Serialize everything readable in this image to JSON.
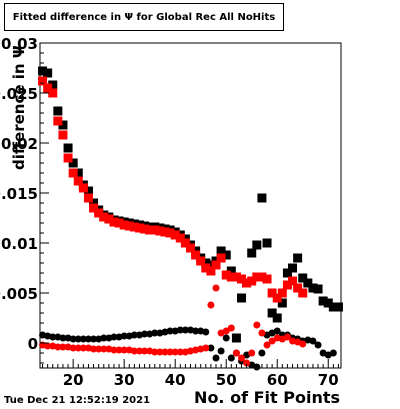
{
  "title": "Fitted difference in  Ψ  for Global Rec All NoHits",
  "timestamp": "Tue Dec 21 12:52:19 2021",
  "chart_data": {
    "type": "scatter",
    "title": "Fitted difference in  Ψ  for Global Rec All NoHits",
    "xlabel": "No. of Fit Points",
    "ylabel": "difference in  Ψ",
    "xlim": [
      13.5,
      72.5
    ],
    "ylim": [
      -0.0025,
      0.03
    ],
    "x_ticks": [
      "20",
      "30",
      "40",
      "50",
      "60",
      "70"
    ],
    "y_ticks": [
      "0",
      "0.005",
      "0.01",
      "0.015",
      "0.02",
      "0.025",
      "0.03"
    ],
    "grid": false,
    "colors": {
      "black": "#000000",
      "red": "#ff0000"
    },
    "series": [
      {
        "color": "black",
        "marker": "square",
        "points": [
          [
            14,
            0.0272
          ],
          [
            15,
            0.027
          ],
          [
            16,
            0.0258
          ],
          [
            17,
            0.0232
          ],
          [
            18,
            0.0218
          ],
          [
            19,
            0.0195
          ],
          [
            20,
            0.018
          ],
          [
            21,
            0.017
          ],
          [
            22,
            0.0158
          ],
          [
            23,
            0.0152
          ],
          [
            24,
            0.014
          ],
          [
            25,
            0.0133
          ],
          [
            26,
            0.0128
          ],
          [
            27,
            0.0126
          ],
          [
            28,
            0.0123
          ],
          [
            29,
            0.0122
          ],
          [
            30,
            0.0121
          ],
          [
            31,
            0.012
          ],
          [
            32,
            0.0119
          ],
          [
            33,
            0.0118
          ],
          [
            34,
            0.0117
          ],
          [
            35,
            0.0116
          ],
          [
            36,
            0.0116
          ],
          [
            37,
            0.0115
          ],
          [
            38,
            0.0114
          ],
          [
            39,
            0.0113
          ],
          [
            40,
            0.0111
          ],
          [
            41,
            0.0108
          ],
          [
            42,
            0.0104
          ],
          [
            43,
            0.0098
          ],
          [
            44,
            0.0092
          ],
          [
            45,
            0.0085
          ],
          [
            46,
            0.008
          ],
          [
            47,
            0.0078
          ],
          [
            48,
            0.0082
          ],
          [
            49,
            0.0092
          ],
          [
            50,
            0.0088
          ],
          [
            51,
            0.0072
          ],
          [
            52,
            0.0005
          ],
          [
            53,
            0.0045
          ],
          [
            54,
            0.006
          ],
          [
            55,
            0.009
          ],
          [
            56,
            0.0098
          ],
          [
            57,
            0.0145
          ],
          [
            58,
            0.01
          ],
          [
            59,
            0.003
          ],
          [
            60,
            0.0025
          ],
          [
            61,
            0.004
          ],
          [
            62,
            0.007
          ],
          [
            63,
            0.0075
          ],
          [
            64,
            0.0085
          ],
          [
            65,
            0.0065
          ],
          [
            66,
            0.006
          ],
          [
            67,
            0.0055
          ],
          [
            68,
            0.0054
          ],
          [
            69,
            0.0042
          ],
          [
            70,
            0.004
          ],
          [
            71,
            0.0036
          ],
          [
            72,
            0.0036
          ]
        ]
      },
      {
        "color": "red",
        "marker": "square",
        "points": [
          [
            14,
            0.0262
          ],
          [
            15,
            0.0255
          ],
          [
            16,
            0.025
          ],
          [
            17,
            0.0222
          ],
          [
            18,
            0.0208
          ],
          [
            19,
            0.0185
          ],
          [
            20,
            0.017
          ],
          [
            21,
            0.0162
          ],
          [
            22,
            0.0155
          ],
          [
            23,
            0.0145
          ],
          [
            24,
            0.0135
          ],
          [
            25,
            0.013
          ],
          [
            26,
            0.0126
          ],
          [
            27,
            0.0124
          ],
          [
            28,
            0.0121
          ],
          [
            29,
            0.012
          ],
          [
            30,
            0.0118
          ],
          [
            31,
            0.0117
          ],
          [
            32,
            0.0116
          ],
          [
            33,
            0.0115
          ],
          [
            34,
            0.0114
          ],
          [
            35,
            0.0113
          ],
          [
            36,
            0.0113
          ],
          [
            37,
            0.0112
          ],
          [
            38,
            0.0111
          ],
          [
            39,
            0.011
          ],
          [
            40,
            0.0108
          ],
          [
            41,
            0.0105
          ],
          [
            42,
            0.01
          ],
          [
            43,
            0.0095
          ],
          [
            44,
            0.0088
          ],
          [
            45,
            0.0082
          ],
          [
            46,
            0.0075
          ],
          [
            47,
            0.0072
          ],
          [
            48,
            0.0078
          ],
          [
            49,
            0.0085
          ],
          [
            50,
            0.0068
          ],
          [
            51,
            0.0066
          ],
          [
            52,
            0.0066
          ],
          [
            53,
            0.0064
          ],
          [
            54,
            0.006
          ],
          [
            55,
            0.0062
          ],
          [
            56,
            0.0066
          ],
          [
            57,
            0.0066
          ],
          [
            58,
            0.0064
          ],
          [
            59,
            0.005
          ],
          [
            60,
            0.0045
          ],
          [
            61,
            0.005
          ],
          [
            62,
            0.0058
          ],
          [
            63,
            0.0062
          ],
          [
            64,
            0.0055
          ],
          [
            65,
            0.005
          ]
        ]
      },
      {
        "color": "black",
        "marker": "circle",
        "points": [
          [
            14,
            0.0008
          ],
          [
            15,
            0.0007
          ],
          [
            16,
            0.0006
          ],
          [
            17,
            0.0006
          ],
          [
            18,
            0.0005
          ],
          [
            19,
            0.0005
          ],
          [
            20,
            0.0004
          ],
          [
            21,
            0.0004
          ],
          [
            22,
            0.0004
          ],
          [
            23,
            0.0004
          ],
          [
            24,
            0.0004
          ],
          [
            25,
            0.0004
          ],
          [
            26,
            0.0005
          ],
          [
            27,
            0.0005
          ],
          [
            28,
            0.0006
          ],
          [
            29,
            0.0006
          ],
          [
            30,
            0.0007
          ],
          [
            31,
            0.0007
          ],
          [
            32,
            0.0008
          ],
          [
            33,
            0.0008
          ],
          [
            34,
            0.0009
          ],
          [
            35,
            0.0009
          ],
          [
            36,
            0.001
          ],
          [
            37,
            0.001
          ],
          [
            38,
            0.0011
          ],
          [
            39,
            0.0012
          ],
          [
            40,
            0.0012
          ],
          [
            41,
            0.0013
          ],
          [
            42,
            0.0013
          ],
          [
            43,
            0.0013
          ],
          [
            44,
            0.0012
          ],
          [
            45,
            0.0012
          ],
          [
            46,
            0.0011
          ],
          [
            47,
            -0.0005
          ],
          [
            48,
            -0.0015
          ],
          [
            49,
            -0.0008
          ],
          [
            50,
            0.0005
          ],
          [
            51,
            -0.0015
          ],
          [
            52,
            -0.001
          ],
          [
            53,
            -0.0018
          ],
          [
            54,
            -0.0012
          ],
          [
            55,
            -0.0022
          ],
          [
            56,
            -0.0024
          ],
          [
            57,
            -0.001
          ],
          [
            58,
            0.0008
          ],
          [
            59,
            0.001
          ],
          [
            60,
            0.0012
          ],
          [
            61,
            0.0008
          ],
          [
            62,
            0.0008
          ],
          [
            63,
            0.0005
          ],
          [
            64,
            0.0004
          ],
          [
            65,
            0.0002
          ],
          [
            66,
            0.0003
          ],
          [
            67,
            0.0002
          ],
          [
            68,
            -0.0002
          ],
          [
            69,
            -0.001
          ],
          [
            70,
            -0.0012
          ],
          [
            71,
            -0.001
          ]
        ]
      },
      {
        "color": "red",
        "marker": "circle",
        "points": [
          [
            14,
            -0.0002
          ],
          [
            15,
            -0.0003
          ],
          [
            16,
            -0.0003
          ],
          [
            17,
            -0.0004
          ],
          [
            18,
            -0.0004
          ],
          [
            19,
            -0.0004
          ],
          [
            20,
            -0.0005
          ],
          [
            21,
            -0.0005
          ],
          [
            22,
            -0.0005
          ],
          [
            23,
            -0.0005
          ],
          [
            24,
            -0.0006
          ],
          [
            25,
            -0.0006
          ],
          [
            26,
            -0.0006
          ],
          [
            27,
            -0.0006
          ],
          [
            28,
            -0.0007
          ],
          [
            29,
            -0.0007
          ],
          [
            30,
            -0.0007
          ],
          [
            31,
            -0.0007
          ],
          [
            32,
            -0.0008
          ],
          [
            33,
            -0.0008
          ],
          [
            34,
            -0.0008
          ],
          [
            35,
            -0.0008
          ],
          [
            36,
            -0.0009
          ],
          [
            37,
            -0.0009
          ],
          [
            38,
            -0.0009
          ],
          [
            39,
            -0.0009
          ],
          [
            40,
            -0.0009
          ],
          [
            41,
            -0.0009
          ],
          [
            42,
            -0.0009
          ],
          [
            43,
            -0.0008
          ],
          [
            44,
            -0.0007
          ],
          [
            45,
            -0.0006
          ],
          [
            46,
            -0.0005
          ],
          [
            47,
            0.0038
          ],
          [
            48,
            0.0055
          ],
          [
            49,
            0.001
          ],
          [
            50,
            0.0012
          ],
          [
            51,
            0.0015
          ],
          [
            52,
            -0.001
          ],
          [
            53,
            -0.0015
          ],
          [
            54,
            -0.002
          ],
          [
            55,
            -0.001
          ],
          [
            56,
            0.0018
          ],
          [
            57,
            0.001
          ],
          [
            58,
            -0.0002
          ],
          [
            59,
            0.0002
          ],
          [
            60,
            0.0005
          ],
          [
            61,
            0.0004
          ],
          [
            62,
            0.0006
          ],
          [
            63,
            0.0002
          ],
          [
            64,
            0.0001
          ],
          [
            65,
            -0.0001
          ]
        ]
      }
    ]
  }
}
